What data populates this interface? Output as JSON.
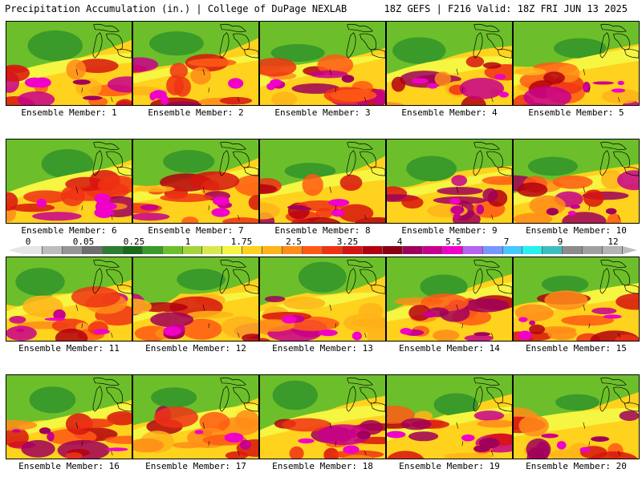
{
  "header": {
    "title_left": "Precipitation Accumulation (in.) | College of DuPage NEXLAB",
    "title_right": "18Z GEFS | F216 Valid: 18Z FRI JUN 13 2025"
  },
  "colorbar": {
    "tick_labels": [
      "0",
      "0.05",
      "0.25",
      "1",
      "1.75",
      "2.5",
      "3.25",
      "4",
      "5.5",
      "7",
      "9",
      "12"
    ],
    "colors": [
      "#e6e6e6",
      "#bdbdbd",
      "#969696",
      "#6e6e6e",
      "#2e7d32",
      "#1b6b1b",
      "#3a9a2a",
      "#6cbf2a",
      "#a4d43a",
      "#d8e84a",
      "#f5f542",
      "#ffd21e",
      "#ffb419",
      "#ff8c19",
      "#ff5a14",
      "#f03214",
      "#d7140f",
      "#b4000f",
      "#8c0014",
      "#a0005a",
      "#c8008c",
      "#f000c8",
      "#b464f0",
      "#7896ff",
      "#46c8ff",
      "#28f0f0",
      "#3cbebe",
      "#8c8c8c",
      "#a0a0a0",
      "#b4b4b4"
    ]
  },
  "panels": [
    {
      "label": "Ensemble Member: 1"
    },
    {
      "label": "Ensemble Member: 2"
    },
    {
      "label": "Ensemble Member: 3"
    },
    {
      "label": "Ensemble Member: 4"
    },
    {
      "label": "Ensemble Member: 5"
    },
    {
      "label": "Ensemble Member: 6"
    },
    {
      "label": "Ensemble Member: 7"
    },
    {
      "label": "Ensemble Member: 8"
    },
    {
      "label": "Ensemble Member: 9"
    },
    {
      "label": "Ensemble Member: 10"
    },
    {
      "label": "Ensemble Member: 11"
    },
    {
      "label": "Ensemble Member: 12"
    },
    {
      "label": "Ensemble Member: 13"
    },
    {
      "label": "Ensemble Member: 14"
    },
    {
      "label": "Ensemble Member: 15"
    },
    {
      "label": "Ensemble Member: 16"
    },
    {
      "label": "Ensemble Member: 17"
    },
    {
      "label": "Ensemble Member: 18"
    },
    {
      "label": "Ensemble Member: 19"
    },
    {
      "label": "Ensemble Member: 20"
    }
  ]
}
